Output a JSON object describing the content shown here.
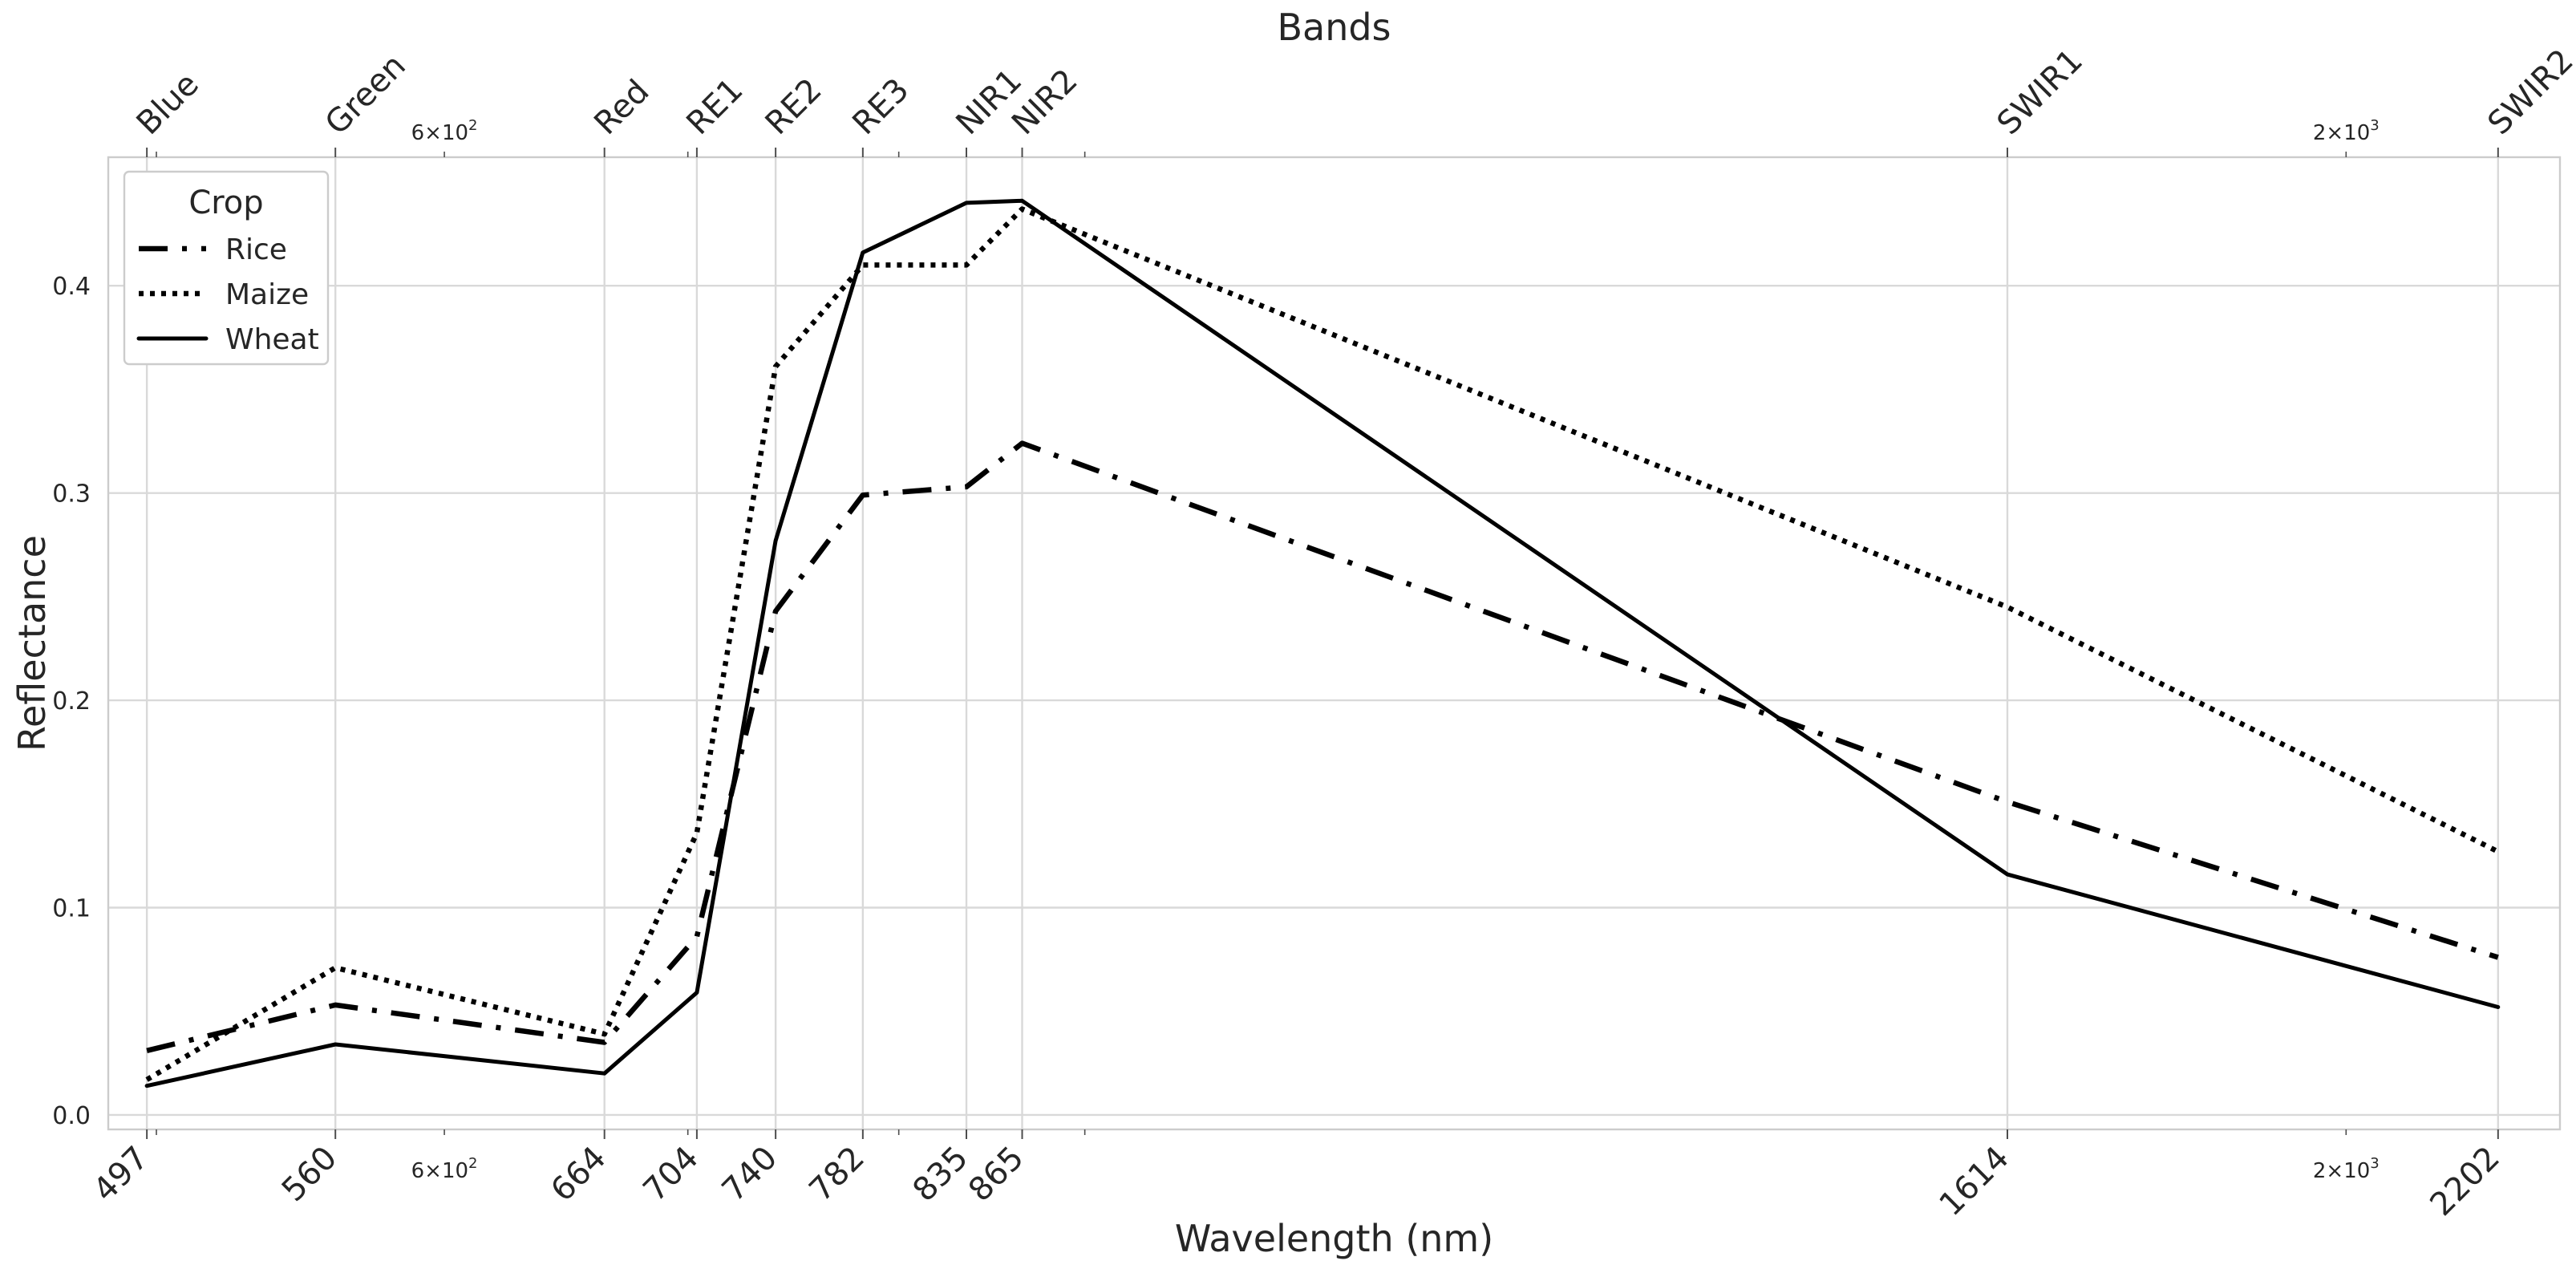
{
  "chart_data": {
    "type": "line",
    "xlabel": "Wavelength (nm)",
    "ylabel": "Reflectance",
    "top_axis_label": "Bands",
    "x_scale": "log",
    "xlim": [
      485,
      2290
    ],
    "ylim": [
      -0.007,
      0.462
    ],
    "grid": true,
    "x": [
      497,
      560,
      664,
      704,
      740,
      782,
      835,
      865,
      1614,
      2202
    ],
    "x_tick_labels": [
      "497",
      "560",
      "664",
      "704",
      "740",
      "782",
      "835",
      "865",
      "1614",
      "2202"
    ],
    "band_labels": [
      "Blue",
      "Green",
      "Red",
      "RE1",
      "RE2",
      "RE3",
      "NIR1",
      "NIR2",
      "SWIR1",
      "SWIR2"
    ],
    "y_ticks": [
      0.0,
      0.1,
      0.2,
      0.3,
      0.4
    ],
    "y_tick_labels": [
      "0.0",
      "0.1",
      "0.2",
      "0.3",
      "0.4"
    ],
    "log_minor_labels": [
      {
        "value": 600,
        "mantissa": "6",
        "exponent": "2"
      },
      {
        "value": 2000,
        "mantissa": "2",
        "exponent": "3"
      }
    ],
    "legend": {
      "title": "Crop",
      "position": "upper left"
    },
    "series": [
      {
        "name": "Rice",
        "linestyle": "dashdot",
        "color": "#000000",
        "values": [
          0.031,
          0.053,
          0.035,
          0.086,
          0.243,
          0.299,
          0.303,
          0.324,
          0.151,
          0.076
        ]
      },
      {
        "name": "Maize",
        "linestyle": "dotted",
        "color": "#000000",
        "values": [
          0.017,
          0.071,
          0.039,
          0.136,
          0.361,
          0.41,
          0.41,
          0.437,
          0.245,
          0.127
        ]
      },
      {
        "name": "Wheat",
        "linestyle": "solid",
        "color": "#000000",
        "values": [
          0.014,
          0.034,
          0.02,
          0.059,
          0.277,
          0.416,
          0.44,
          0.441,
          0.116,
          0.052
        ]
      }
    ]
  }
}
